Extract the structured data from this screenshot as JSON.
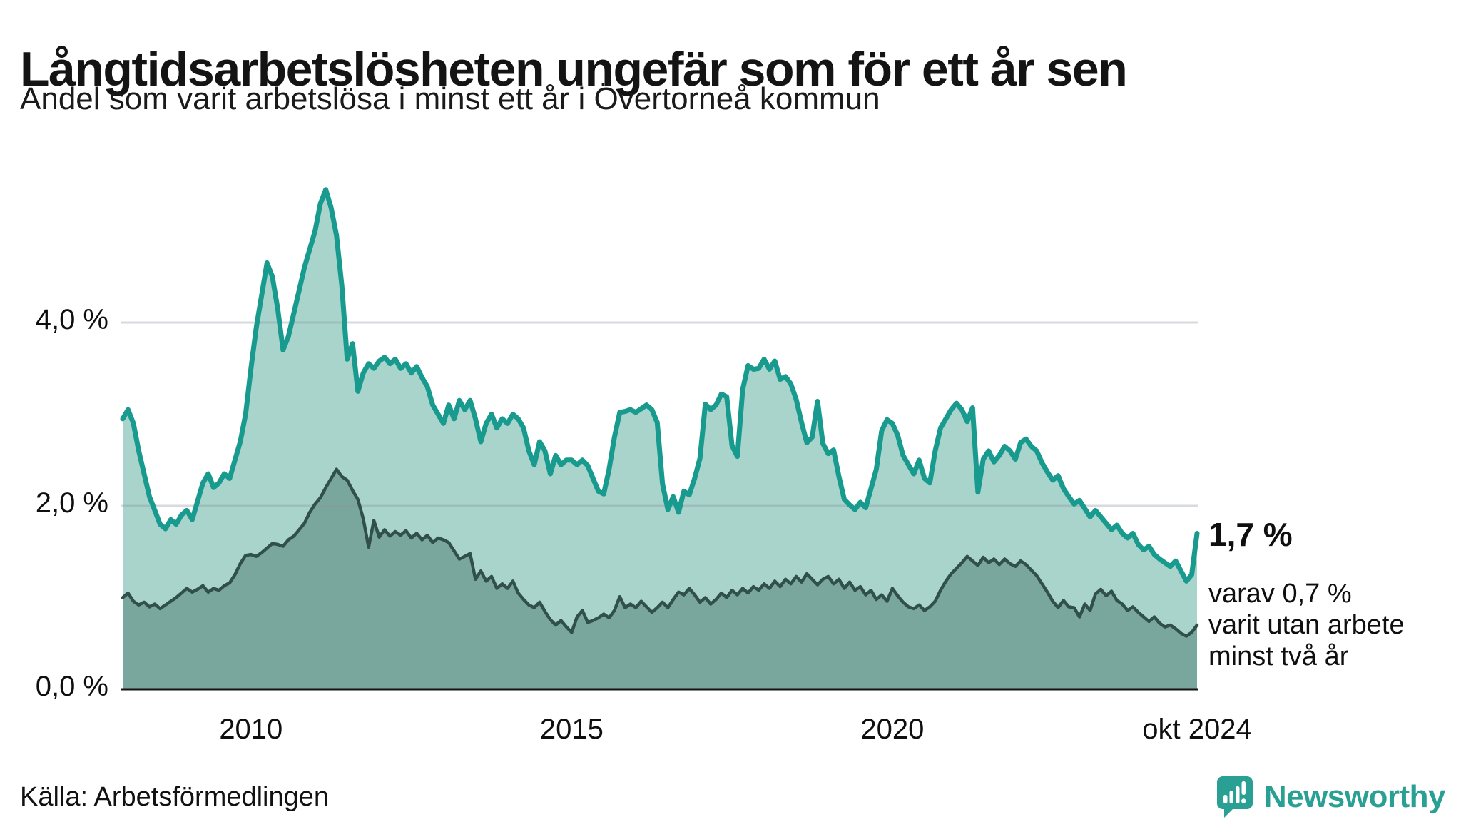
{
  "header": {
    "title": "Långtidsarbetslösheten ungefär som för ett år sen",
    "subtitle": "Andel som varit arbetslösa i minst ett år i Övertorneå kommun"
  },
  "annotations": {
    "latest_value": "1,7 %",
    "sub_line1": "varav 0,7 %",
    "sub_line2": "varit utan arbete",
    "sub_line3": "minst två år"
  },
  "footer": {
    "source": "Källa: Arbetsförmedlingen",
    "brand_name": "Newsworthy"
  },
  "colors": {
    "one_year_line": "#189b8e",
    "one_year_fill": "#a8d4cc",
    "two_year_line": "#31504a",
    "two_year_fill": "#79a69d",
    "gridline": "rgba(140,150,160,0.35)",
    "baseline": "#141414",
    "brand_teal": "#2aa094"
  },
  "chart_data": {
    "type": "area",
    "unit": "%",
    "frequency": "monthly",
    "x_start": "jan 2008",
    "x_end": "okt 2024",
    "ylim": [
      0,
      5.6
    ],
    "grid": true,
    "yticks": [
      {
        "value": 0,
        "label": "0,0 %"
      },
      {
        "value": 2,
        "label": "2,0 %"
      },
      {
        "value": 4,
        "label": "4,0 %"
      }
    ],
    "xticks": [
      {
        "year": 2010,
        "label": "2010"
      },
      {
        "year": 2015,
        "label": "2015"
      },
      {
        "year": 2020,
        "label": "2020"
      },
      {
        "year": 2024.75,
        "label": "okt 2024"
      }
    ],
    "series": [
      {
        "name": "Andel som varit arbetslösa i minst ett år",
        "latest_label": "1,7 %",
        "latest": 1.7,
        "values": [
          2.95,
          3.05,
          2.9,
          2.6,
          2.35,
          2.1,
          1.95,
          1.8,
          1.75,
          1.85,
          1.8,
          1.9,
          1.95,
          1.85,
          2.05,
          2.25,
          2.35,
          2.2,
          2.25,
          2.35,
          2.3,
          2.5,
          2.7,
          3.0,
          3.5,
          3.95,
          4.3,
          4.65,
          4.5,
          4.15,
          3.7,
          3.85,
          4.1,
          4.35,
          4.6,
          4.8,
          5.0,
          5.3,
          5.45,
          5.25,
          4.95,
          4.4,
          3.6,
          3.77,
          3.25,
          3.45,
          3.55,
          3.5,
          3.58,
          3.62,
          3.55,
          3.6,
          3.5,
          3.55,
          3.45,
          3.52,
          3.4,
          3.3,
          3.1,
          3.0,
          2.9,
          3.1,
          2.95,
          3.15,
          3.05,
          3.15,
          2.95,
          2.7,
          2.9,
          3.0,
          2.85,
          2.95,
          2.9,
          3.0,
          2.95,
          2.85,
          2.6,
          2.45,
          2.7,
          2.6,
          2.35,
          2.55,
          2.45,
          2.5,
          2.5,
          2.45,
          2.5,
          2.44,
          2.3,
          2.16,
          2.13,
          2.4,
          2.75,
          3.02,
          3.03,
          3.05,
          3.02,
          3.06,
          3.1,
          3.05,
          2.91,
          2.24,
          1.96,
          2.1,
          1.93,
          2.16,
          2.12,
          2.3,
          2.52,
          3.11,
          3.05,
          3.1,
          3.22,
          3.19,
          2.66,
          2.54,
          3.27,
          3.53,
          3.49,
          3.5,
          3.6,
          3.49,
          3.58,
          3.38,
          3.41,
          3.33,
          3.16,
          2.91,
          2.69,
          2.75,
          3.14,
          2.68,
          2.57,
          2.61,
          2.32,
          2.07,
          2.01,
          1.96,
          2.04,
          1.98,
          2.19,
          2.4,
          2.82,
          2.94,
          2.9,
          2.77,
          2.55,
          2.45,
          2.35,
          2.5,
          2.3,
          2.25,
          2.6,
          2.85,
          2.95,
          3.05,
          3.12,
          3.05,
          2.92,
          3.07,
          2.15,
          2.51,
          2.6,
          2.48,
          2.55,
          2.65,
          2.6,
          2.51,
          2.69,
          2.73,
          2.65,
          2.6,
          2.47,
          2.37,
          2.28,
          2.33,
          2.19,
          2.1,
          2.02,
          2.06,
          1.97,
          1.88,
          1.95,
          1.88,
          1.81,
          1.74,
          1.79,
          1.7,
          1.65,
          1.7,
          1.58,
          1.52,
          1.56,
          1.47,
          1.42,
          1.38,
          1.34,
          1.4,
          1.29,
          1.18,
          1.25,
          1.7
        ]
      },
      {
        "name": "varav varit utan arbete minst två år",
        "latest_label": "0,7 %",
        "latest": 0.7,
        "values": [
          1.0,
          1.05,
          0.96,
          0.92,
          0.95,
          0.9,
          0.93,
          0.88,
          0.92,
          0.96,
          1.0,
          1.05,
          1.1,
          1.06,
          1.09,
          1.13,
          1.06,
          1.1,
          1.08,
          1.13,
          1.16,
          1.25,
          1.37,
          1.46,
          1.47,
          1.45,
          1.49,
          1.54,
          1.59,
          1.58,
          1.56,
          1.63,
          1.67,
          1.74,
          1.81,
          1.93,
          2.02,
          2.09,
          2.2,
          2.3,
          2.4,
          2.32,
          2.28,
          2.17,
          2.07,
          1.86,
          1.55,
          1.84,
          1.66,
          1.74,
          1.67,
          1.72,
          1.68,
          1.73,
          1.65,
          1.7,
          1.63,
          1.68,
          1.6,
          1.65,
          1.63,
          1.6,
          1.51,
          1.42,
          1.45,
          1.48,
          1.2,
          1.29,
          1.18,
          1.23,
          1.1,
          1.15,
          1.1,
          1.18,
          1.05,
          0.98,
          0.92,
          0.89,
          0.95,
          0.85,
          0.76,
          0.7,
          0.75,
          0.68,
          0.62,
          0.79,
          0.86,
          0.73,
          0.75,
          0.78,
          0.82,
          0.78,
          0.86,
          1.01,
          0.89,
          0.93,
          0.89,
          0.96,
          0.9,
          0.84,
          0.89,
          0.95,
          0.89,
          0.98,
          1.06,
          1.03,
          1.1,
          1.03,
          0.95,
          1.0,
          0.93,
          0.98,
          1.05,
          1.0,
          1.08,
          1.03,
          1.1,
          1.05,
          1.12,
          1.08,
          1.15,
          1.1,
          1.18,
          1.12,
          1.2,
          1.15,
          1.23,
          1.17,
          1.26,
          1.2,
          1.14,
          1.2,
          1.23,
          1.15,
          1.2,
          1.1,
          1.17,
          1.08,
          1.12,
          1.03,
          1.08,
          0.98,
          1.03,
          0.96,
          1.1,
          1.02,
          0.95,
          0.9,
          0.88,
          0.92,
          0.86,
          0.9,
          0.96,
          1.08,
          1.18,
          1.26,
          1.32,
          1.38,
          1.45,
          1.4,
          1.35,
          1.44,
          1.38,
          1.42,
          1.36,
          1.42,
          1.37,
          1.34,
          1.4,
          1.36,
          1.3,
          1.24,
          1.15,
          1.06,
          0.96,
          0.89,
          0.97,
          0.9,
          0.89,
          0.79,
          0.93,
          0.86,
          1.04,
          1.09,
          1.02,
          1.07,
          0.97,
          0.93,
          0.86,
          0.9,
          0.84,
          0.79,
          0.74,
          0.79,
          0.72,
          0.68,
          0.7,
          0.66,
          0.61,
          0.58,
          0.62,
          0.7
        ]
      }
    ]
  }
}
